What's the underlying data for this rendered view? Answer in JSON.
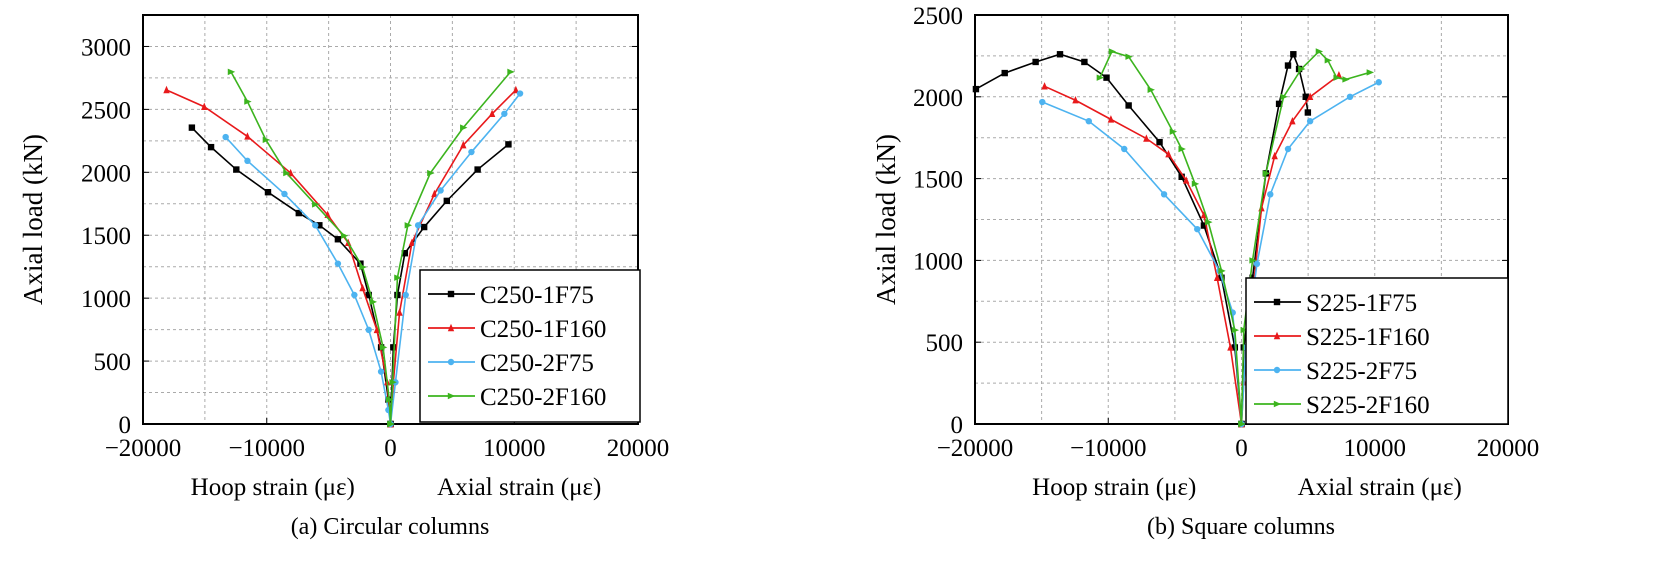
{
  "chart_data": [
    {
      "type": "line",
      "caption": "(a) Circular columns",
      "ylabel": "Axial load (kN)",
      "xlabel_left": "Hoop strain (με)",
      "xlabel_right": "Axial strain (με)",
      "xlim": [
        -20000,
        20000
      ],
      "ylim": [
        0,
        3250
      ],
      "xticks": [
        -20000,
        -10000,
        0,
        10000,
        20000
      ],
      "yticks": [
        0,
        500,
        1000,
        1500,
        2000,
        2500,
        3000
      ],
      "grid": true,
      "legend_position": "bottom-right",
      "series": [
        {
          "name": "C250-1F75",
          "color": "#000000",
          "marker": "square",
          "hoop": [
            [
              0,
              0
            ],
            [
              -170,
              194
            ],
            [
              -760,
              609
            ],
            [
              -1760,
              1025
            ],
            [
              -2430,
              1274
            ],
            [
              -4250,
              1468
            ],
            [
              -5750,
              1579
            ],
            [
              -7410,
              1676
            ],
            [
              -9900,
              1842
            ],
            [
              -12460,
              2022
            ],
            [
              -14500,
              2200
            ],
            [
              -16050,
              2355
            ]
          ],
          "axial": [
            [
              0,
              0
            ],
            [
              230,
              609
            ],
            [
              560,
              1025
            ],
            [
              1160,
              1357
            ],
            [
              2720,
              1565
            ],
            [
              4550,
              1773
            ],
            [
              7040,
              2022
            ],
            [
              9530,
              2222
            ]
          ]
        },
        {
          "name": "C250-1F160",
          "color": "#e8191b",
          "marker": "triangle",
          "hoop": [
            [
              0,
              0
            ],
            [
              -270,
              332
            ],
            [
              -1100,
              748
            ],
            [
              -2260,
              1080
            ],
            [
              -3420,
              1440
            ],
            [
              -5080,
              1662
            ],
            [
              -8070,
              1994
            ],
            [
              -11560,
              2285
            ],
            [
              -15050,
              2521
            ],
            [
              -18100,
              2654
            ]
          ],
          "axial": [
            [
              0,
              0
            ],
            [
              230,
              332
            ],
            [
              730,
              886
            ],
            [
              1730,
              1440
            ],
            [
              3550,
              1828
            ],
            [
              5880,
              2216
            ],
            [
              8210,
              2465
            ],
            [
              10130,
              2654
            ]
          ]
        },
        {
          "name": "C250-2F75",
          "color": "#4db3f0",
          "marker": "circle",
          "hoop": [
            [
              0,
              0
            ],
            [
              -170,
              111
            ],
            [
              -760,
              416
            ],
            [
              -1760,
              748
            ],
            [
              -2920,
              1025
            ],
            [
              -4250,
              1274
            ],
            [
              -6080,
              1579
            ],
            [
              -8570,
              1828
            ],
            [
              -11560,
              2091
            ],
            [
              -13320,
              2280
            ]
          ],
          "axial": [
            [
              0,
              0
            ],
            [
              400,
              332
            ],
            [
              1230,
              1025
            ],
            [
              2230,
              1579
            ],
            [
              4050,
              1856
            ],
            [
              6540,
              2161
            ],
            [
              9200,
              2465
            ],
            [
              10470,
              2626
            ]
          ]
        },
        {
          "name": "C250-2F160",
          "color": "#3cb41e",
          "marker": "triangle-right",
          "hoop": [
            [
              0,
              0
            ],
            [
              -100,
              194
            ],
            [
              -600,
              609
            ],
            [
              -1430,
              970
            ],
            [
              -2260,
              1247
            ],
            [
              -3750,
              1496
            ],
            [
              -6080,
              1745
            ],
            [
              -8410,
              1994
            ],
            [
              -10070,
              2258
            ],
            [
              -11560,
              2562
            ],
            [
              -12890,
              2798
            ]
          ],
          "axial": [
            [
              0,
              0
            ],
            [
              170,
              332
            ],
            [
              560,
              1163
            ],
            [
              1400,
              1579
            ],
            [
              3220,
              1994
            ],
            [
              5880,
              2355
            ],
            [
              9700,
              2798
            ]
          ]
        }
      ]
    },
    {
      "type": "line",
      "caption": "(b) Square columns",
      "ylabel": "Axial load (kN)",
      "xlabel_left": "Hoop strain (με)",
      "xlabel_right": "Axial strain (με)",
      "xlim": [
        -20000,
        20000
      ],
      "ylim": [
        0,
        2500
      ],
      "xticks": [
        -20000,
        -10000,
        0,
        10000,
        20000
      ],
      "yticks": [
        0,
        500,
        1000,
        1500,
        2000,
        2500
      ],
      "grid": true,
      "legend_position": "bottom-right",
      "series": [
        {
          "name": "S225-1F75",
          "color": "#000000",
          "marker": "square",
          "hoop": [
            [
              0,
              0
            ],
            [
              -500,
              468
            ],
            [
              -1500,
              894
            ],
            [
              -2820,
              1213
            ],
            [
              -4490,
              1511
            ],
            [
              -6150,
              1723
            ],
            [
              -8470,
              1947
            ],
            [
              -10130,
              2117
            ],
            [
              -11790,
              2213
            ],
            [
              -13620,
              2260
            ],
            [
              -15450,
              2213
            ],
            [
              -17770,
              2145
            ],
            [
              -19930,
              2047
            ]
          ],
          "axial": [
            [
              0,
              0
            ],
            [
              170,
              468
            ],
            [
              830,
              894
            ],
            [
              1830,
              1532
            ],
            [
              2820,
              1957
            ],
            [
              3490,
              2191
            ],
            [
              3890,
              2260
            ],
            [
              4320,
              2170
            ],
            [
              4820,
              2000
            ],
            [
              4980,
              1904
            ]
          ]
        },
        {
          "name": "S225-1F160",
          "color": "#e8191b",
          "marker": "triangle",
          "hoop": [
            [
              0,
              0
            ],
            [
              -830,
              468
            ],
            [
              -1830,
              894
            ],
            [
              -2820,
              1277
            ],
            [
              -4150,
              1489
            ],
            [
              -5480,
              1649
            ],
            [
              -7140,
              1745
            ],
            [
              -9800,
              1862
            ],
            [
              -12460,
              1979
            ],
            [
              -14780,
              2064
            ]
          ],
          "axial": [
            [
              0,
              0
            ],
            [
              170,
              255
            ],
            [
              830,
              787
            ],
            [
              1500,
              1319
            ],
            [
              2490,
              1638
            ],
            [
              3820,
              1851
            ],
            [
              5150,
              2000
            ],
            [
              7310,
              2132
            ]
          ]
        },
        {
          "name": "S225-2F75",
          "color": "#4db3f0",
          "marker": "circle",
          "hoop": [
            [
              0,
              0
            ],
            [
              -660,
              681
            ],
            [
              -1660,
              936
            ],
            [
              -3320,
              1191
            ],
            [
              -5810,
              1404
            ],
            [
              -8800,
              1681
            ],
            [
              -11460,
              1851
            ],
            [
              -14950,
              1968
            ]
          ],
          "axial": [
            [
              0,
              0
            ],
            [
              330,
              468
            ],
            [
              1160,
              979
            ],
            [
              2160,
              1404
            ],
            [
              3490,
              1681
            ],
            [
              5150,
              1851
            ],
            [
              8140,
              2000
            ],
            [
              10300,
              2089
            ]
          ]
        },
        {
          "name": "S225-2F160",
          "color": "#3cb41e",
          "marker": "triangle-right",
          "hoop": [
            [
              0,
              0
            ],
            [
              -500,
              574
            ],
            [
              -1500,
              936
            ],
            [
              -2490,
              1234
            ],
            [
              -3490,
              1468
            ],
            [
              -4490,
              1681
            ],
            [
              -5150,
              1787
            ],
            [
              -6810,
              2043
            ],
            [
              -8470,
              2245
            ],
            [
              -9730,
              2277
            ],
            [
              -10630,
              2117
            ]
          ],
          "axial": [
            [
              0,
              0
            ],
            [
              170,
              574
            ],
            [
              830,
              1000
            ],
            [
              1830,
              1532
            ],
            [
              3160,
              2000
            ],
            [
              4490,
              2170
            ],
            [
              5810,
              2277
            ],
            [
              6480,
              2223
            ],
            [
              7140,
              2117
            ],
            [
              7810,
              2106
            ],
            [
              9630,
              2149
            ]
          ]
        }
      ]
    }
  ]
}
